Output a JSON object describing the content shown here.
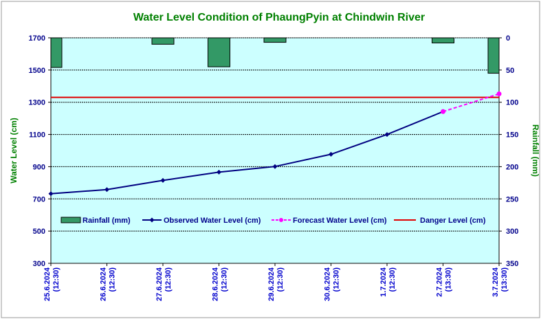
{
  "chart_data": {
    "type": "line",
    "title": "Water Level Condition of PhaungPyin at Chindwin River",
    "ylabel": "Water Level (cm)",
    "y2label": "Rainfall (mm)",
    "categories": [
      [
        "25.6.2024",
        "(12:30)"
      ],
      [
        "26.6.2024",
        "(12:30)"
      ],
      [
        "27.6.2024",
        "(12:30)"
      ],
      [
        "28.6.2024",
        "(12:30)"
      ],
      [
        "29.6.2024",
        "(12:30)"
      ],
      [
        "30.6.2024",
        "(12:30)"
      ],
      [
        "1.7.2024",
        "(12:30)"
      ],
      [
        "2.7.2024",
        "(13:30)"
      ],
      [
        "3.7.2024",
        "(13:30)"
      ]
    ],
    "ylim": [
      300,
      1700
    ],
    "yticks": [
      300,
      500,
      700,
      900,
      1100,
      1300,
      1500,
      1700
    ],
    "y2lim": [
      0,
      350
    ],
    "y2ticks": [
      0,
      50,
      100,
      150,
      200,
      250,
      300,
      350
    ],
    "y2_inverted": true,
    "grid": true,
    "legend_position": "inside-middle",
    "series": [
      {
        "name": "Rainfall (mm)",
        "kind": "bar",
        "axis": "y2",
        "color": "#339966",
        "values": [
          46,
          null,
          10,
          45,
          7,
          null,
          null,
          8,
          55
        ]
      },
      {
        "name": "Observed Water Level (cm)",
        "kind": "line",
        "axis": "y",
        "color": "#000080",
        "marker": "diamond",
        "values": [
          732,
          758,
          815,
          866,
          901,
          977,
          1100,
          1242,
          null
        ]
      },
      {
        "name": "Forecast Water Level (cm)",
        "kind": "dashed-line",
        "axis": "y",
        "color": "#ff00ff",
        "marker": "circle",
        "values": [
          null,
          null,
          null,
          null,
          null,
          null,
          null,
          1242,
          1352
        ]
      },
      {
        "name": "Danger Level (cm)",
        "kind": "hline",
        "axis": "y",
        "color": "#e00000",
        "value": 1330
      }
    ],
    "colors": {
      "plot_background": "#ccffff",
      "gridline": "#000000"
    }
  }
}
